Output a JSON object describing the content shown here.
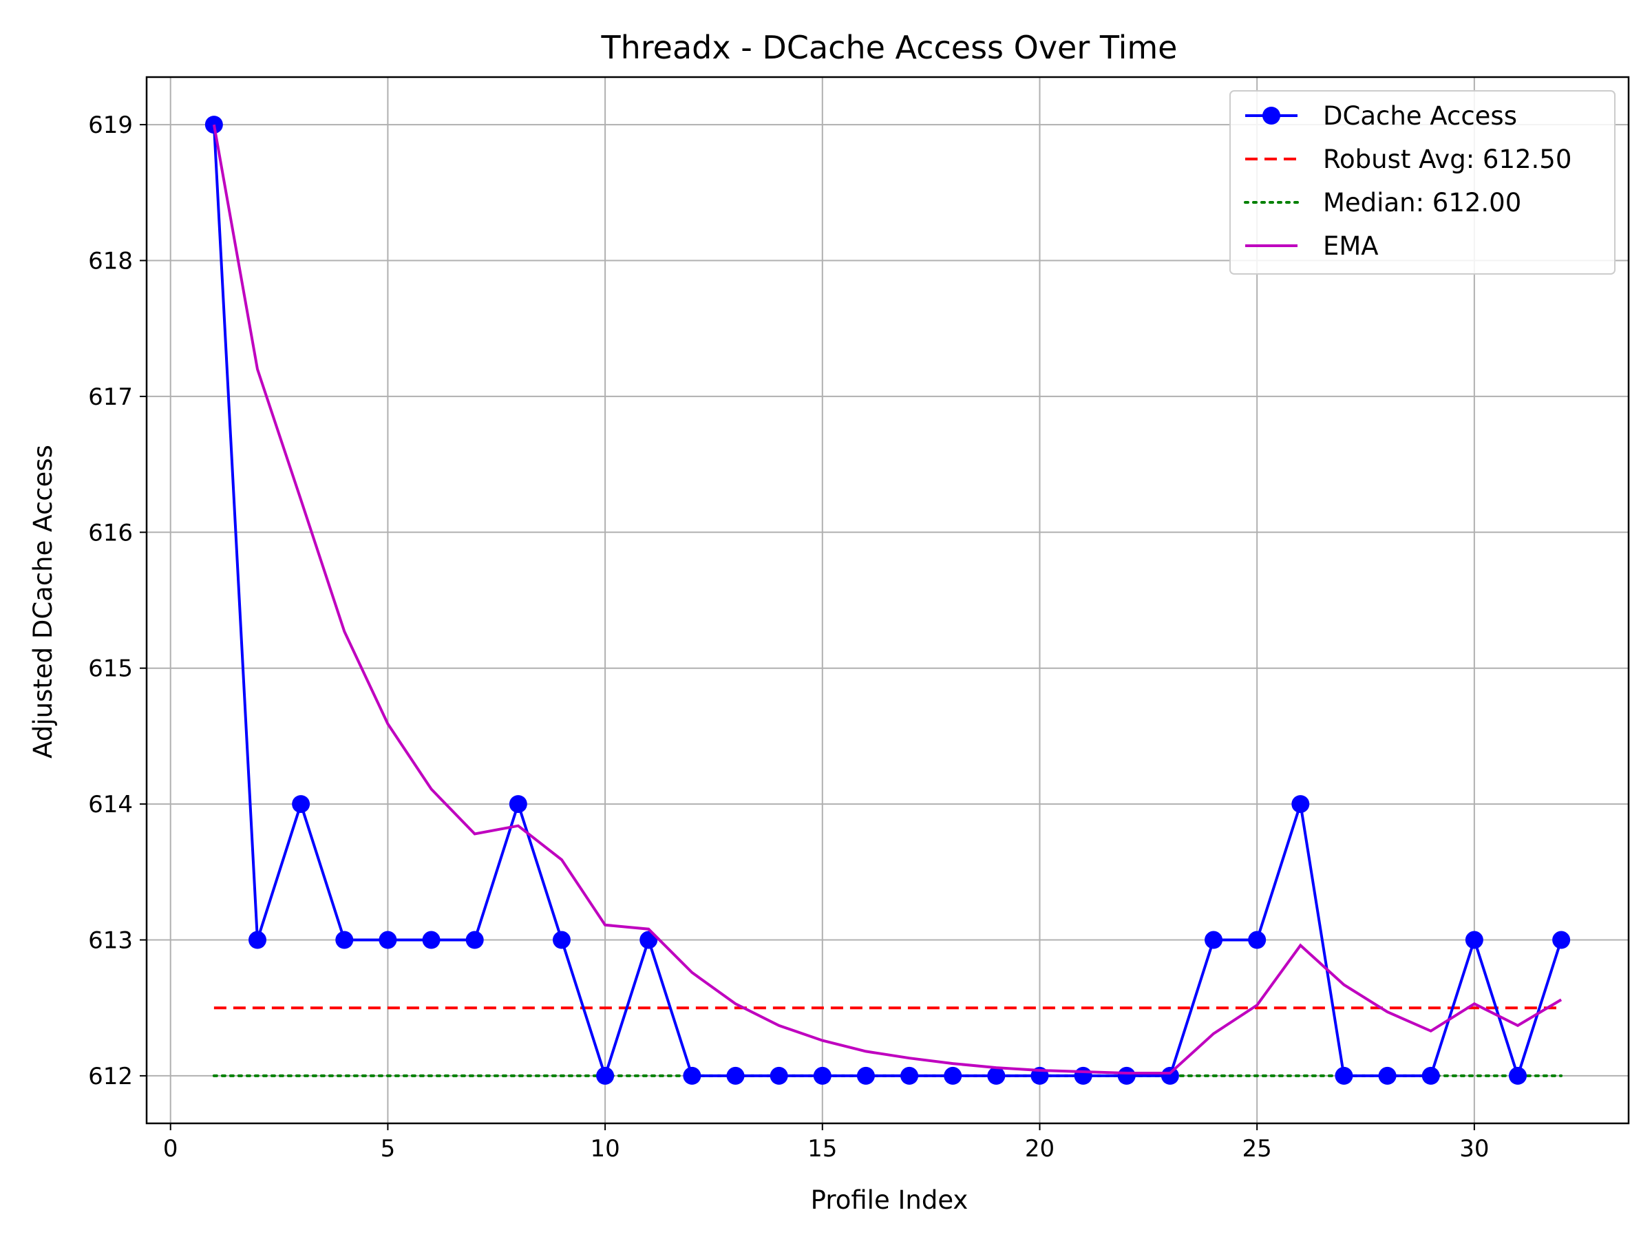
{
  "chart_data": {
    "type": "line",
    "title": "Threadx - DCache Access Over Time",
    "xlabel": "Profile Index",
    "ylabel": "Adjusted DCache Access",
    "xlim": [
      -0.55,
      33.55
    ],
    "ylim": [
      611.65,
      619.35
    ],
    "xticks": [
      0,
      5,
      10,
      15,
      20,
      25,
      30
    ],
    "yticks": [
      612,
      613,
      614,
      615,
      616,
      617,
      618,
      619
    ],
    "grid": true,
    "legend_position": "top-right",
    "x": [
      1,
      2,
      3,
      4,
      5,
      6,
      7,
      8,
      9,
      10,
      11,
      12,
      13,
      14,
      15,
      16,
      17,
      18,
      19,
      20,
      21,
      22,
      23,
      24,
      25,
      26,
      27,
      28,
      29,
      30,
      31,
      32
    ],
    "series": [
      {
        "name": "DCache Access",
        "style": "solid-markers",
        "color": "#0000ff",
        "values": [
          619,
          613,
          614,
          613,
          613,
          613,
          613,
          614,
          613,
          612,
          613,
          612,
          612,
          612,
          612,
          612,
          612,
          612,
          612,
          612,
          612,
          612,
          612,
          613,
          613,
          614,
          612,
          612,
          612,
          613,
          612,
          613
        ]
      },
      {
        "name": "Robust Avg: 612.50",
        "style": "dashed",
        "color": "#ff0000",
        "values": [
          612.5,
          612.5,
          612.5,
          612.5,
          612.5,
          612.5,
          612.5,
          612.5,
          612.5,
          612.5,
          612.5,
          612.5,
          612.5,
          612.5,
          612.5,
          612.5,
          612.5,
          612.5,
          612.5,
          612.5,
          612.5,
          612.5,
          612.5,
          612.5,
          612.5,
          612.5,
          612.5,
          612.5,
          612.5,
          612.5,
          612.5,
          612.5
        ]
      },
      {
        "name": "Median: 612.00",
        "style": "dotted",
        "color": "#008000",
        "values": [
          612,
          612,
          612,
          612,
          612,
          612,
          612,
          612,
          612,
          612,
          612,
          612,
          612,
          612,
          612,
          612,
          612,
          612,
          612,
          612,
          612,
          612,
          612,
          612,
          612,
          612,
          612,
          612,
          612,
          612,
          612,
          612
        ]
      },
      {
        "name": "EMA",
        "style": "solid",
        "color": "#bf00bf",
        "values": [
          619,
          617.2,
          616.24,
          615.27,
          614.59,
          614.11,
          613.78,
          613.84,
          613.59,
          613.11,
          613.08,
          612.76,
          612.53,
          612.37,
          612.26,
          612.18,
          612.13,
          612.09,
          612.06,
          612.04,
          612.03,
          612.02,
          612.02,
          612.31,
          612.52,
          612.96,
          612.67,
          612.47,
          612.33,
          612.53,
          612.37,
          612.56
        ]
      }
    ]
  }
}
